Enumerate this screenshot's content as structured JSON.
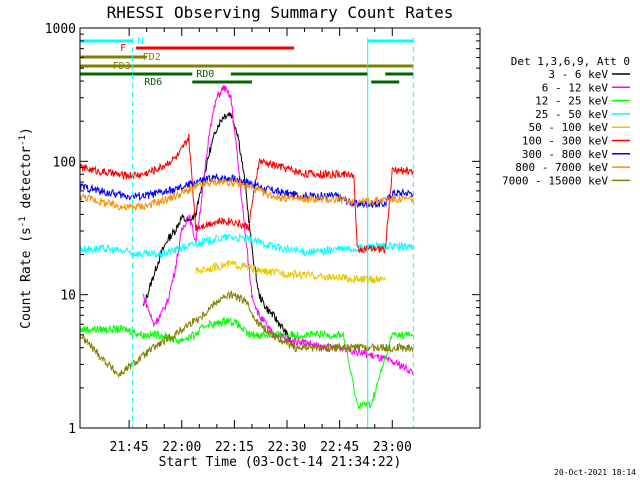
{
  "chart_data": {
    "type": "line",
    "title": "RHESSI Observing Summary Count Rates",
    "xlabel": "Start Time (03-Oct-14 21:34:22)",
    "ylabel_main": "Count Rate (s",
    "ylabel_sup": "-1",
    "ylabel_tail": " detector",
    "ylabel_end": ")",
    "yscale": "log",
    "ylim": [
      1,
      1000
    ],
    "xlim_min": [
      -3,
      111
    ],
    "x_ticks": [
      {
        "v": 11,
        "label": "21:45"
      },
      {
        "v": 26,
        "label": "22:00"
      },
      {
        "v": 41,
        "label": "22:15"
      },
      {
        "v": 56,
        "label": "22:30"
      },
      {
        "v": 71,
        "label": "22:45"
      },
      {
        "v": 86,
        "label": "23:00"
      }
    ],
    "y_ticks": [
      {
        "v": 1,
        "label": "1"
      },
      {
        "v": 10,
        "label": "10"
      },
      {
        "v": 100,
        "label": "100"
      },
      {
        "v": 1000,
        "label": "1000"
      }
    ],
    "legend_title": "Det 1,3,6,9, Att 0",
    "legend_position": "right",
    "series": [
      {
        "name": "3 - 6 keV",
        "color": "#000000",
        "x": [
          15,
          18,
          20,
          22,
          24,
          26,
          28,
          30,
          32,
          34,
          36,
          38,
          40,
          42,
          44,
          46,
          48,
          50,
          52,
          54,
          56,
          58
        ],
        "y": [
          8,
          14,
          20,
          26,
          30,
          38,
          35,
          40,
          70,
          120,
          180,
          220,
          230,
          160,
          70,
          22,
          10,
          8,
          7,
          6,
          5,
          4
        ]
      },
      {
        "name": "6 - 12 keV",
        "color": "#ff00ff",
        "x": [
          15,
          18,
          20,
          22,
          24,
          26,
          28,
          30,
          32,
          34,
          36,
          38,
          40,
          42,
          44,
          46,
          48,
          50,
          52,
          54,
          56,
          60,
          66,
          72,
          80,
          88,
          92
        ],
        "y": [
          10,
          6,
          7,
          9,
          15,
          30,
          40,
          25,
          60,
          180,
          300,
          360,
          300,
          100,
          30,
          10,
          7,
          6,
          5,
          5,
          4.5,
          4.5,
          4,
          4,
          3.5,
          3,
          2.6
        ]
      },
      {
        "name": "12 - 25 keV",
        "color": "#00ff00",
        "x": [
          -3,
          5,
          10,
          15,
          20,
          25,
          30,
          33,
          36,
          39,
          42,
          45,
          48,
          52,
          58,
          65,
          72,
          76,
          80,
          86,
          92
        ],
        "y": [
          5.5,
          5.5,
          5.5,
          5,
          5,
          4.5,
          5,
          6,
          6,
          6.5,
          6,
          5,
          5,
          5,
          5,
          5,
          5,
          1.5,
          1.5,
          5,
          5
        ]
      },
      {
        "name": "25 - 50 keV",
        "color": "#00ffff",
        "x": [
          -3,
          5,
          10,
          15,
          20,
          25,
          30,
          35,
          40,
          45,
          50,
          55,
          60,
          65,
          70,
          75,
          80,
          85,
          90,
          92
        ],
        "y": [
          22,
          22,
          21,
          20,
          20,
          22,
          24,
          26,
          27,
          26,
          24,
          22,
          21,
          21,
          22,
          22,
          23,
          23,
          23,
          23
        ]
      },
      {
        "name": "50 - 100 keV",
        "color": "#e6c800",
        "x": [
          30,
          35,
          40,
          45,
          48,
          76,
          80,
          84
        ],
        "y": [
          15,
          16,
          17,
          16,
          15,
          13,
          13,
          13
        ]
      },
      {
        "name": "100 - 300 keV",
        "color": "#ff0000",
        "x": [
          -3,
          5,
          10,
          15,
          20,
          25,
          28,
          30,
          35,
          40,
          45,
          48,
          55,
          60,
          65,
          70,
          75,
          76,
          84,
          86,
          92
        ],
        "y": [
          90,
          82,
          78,
          80,
          90,
          110,
          150,
          32,
          35,
          36,
          32,
          100,
          90,
          82,
          80,
          80,
          80,
          22,
          22,
          85,
          85
        ]
      },
      {
        "name": "300 - 800 keV",
        "color": "#0000ff",
        "x": [
          -3,
          5,
          10,
          15,
          20,
          25,
          30,
          35,
          40,
          45,
          50,
          55,
          60,
          65,
          70,
          75,
          80,
          84,
          86,
          92
        ],
        "y": [
          65,
          58,
          55,
          55,
          58,
          62,
          70,
          75,
          75,
          70,
          62,
          58,
          55,
          55,
          55,
          48,
          48,
          48,
          58,
          58
        ]
      },
      {
        "name": "800 - 7000 keV",
        "color": "#ff8c00",
        "x": [
          -3,
          5,
          10,
          15,
          20,
          25,
          30,
          35,
          40,
          45,
          50,
          55,
          60,
          65,
          70,
          75,
          80,
          85,
          92
        ],
        "y": [
          55,
          48,
          45,
          46,
          50,
          56,
          64,
          70,
          70,
          65,
          57,
          53,
          52,
          52,
          52,
          50,
          50,
          52,
          52
        ]
      },
      {
        "name": "7000 - 15000 keV",
        "color": "#808000",
        "x": [
          -3,
          5,
          8,
          12,
          18,
          24,
          28,
          32,
          36,
          40,
          44,
          48,
          52,
          58,
          65,
          72,
          76,
          80,
          86,
          92
        ],
        "y": [
          5,
          3,
          2.5,
          3,
          4,
          5,
          6,
          7,
          9,
          10,
          9,
          6,
          5,
          4,
          4,
          4,
          4,
          4,
          4,
          4
        ]
      }
    ],
    "flag_bars": [
      {
        "name": "N",
        "color": "#00ffff",
        "segments": [
          [
            -3,
            12
          ],
          [
            79,
            92
          ]
        ]
      },
      {
        "name": "F",
        "color": "#ff0000",
        "segments": [
          [
            13,
            58
          ]
        ]
      },
      {
        "name": "FD2",
        "color": "#808000",
        "segments": [
          [
            -3,
            16
          ]
        ]
      },
      {
        "name": "FD3",
        "color": "#808000",
        "segments": [
          [
            -3,
            92
          ]
        ]
      },
      {
        "name": "RD0",
        "color": "#006400",
        "segments": [
          [
            -3,
            29
          ],
          [
            40,
            55
          ],
          [
            55,
            79
          ],
          [
            84,
            92
          ]
        ]
      },
      {
        "name": "RD6",
        "color": "#006400",
        "segments": [
          [
            29,
            46
          ],
          [
            80,
            88
          ]
        ]
      }
    ],
    "vertical_lines": [
      {
        "color": "#00ffff",
        "style": "solid",
        "x": -3
      },
      {
        "color": "#00ffff",
        "style": "dashed",
        "x": 12
      },
      {
        "color": "#00ffff",
        "style": "solid",
        "x": 79
      },
      {
        "color": "#00ffff",
        "style": "dashed",
        "x": 92
      }
    ],
    "footer_timestamp": "20-Oct-2021 18:14"
  }
}
